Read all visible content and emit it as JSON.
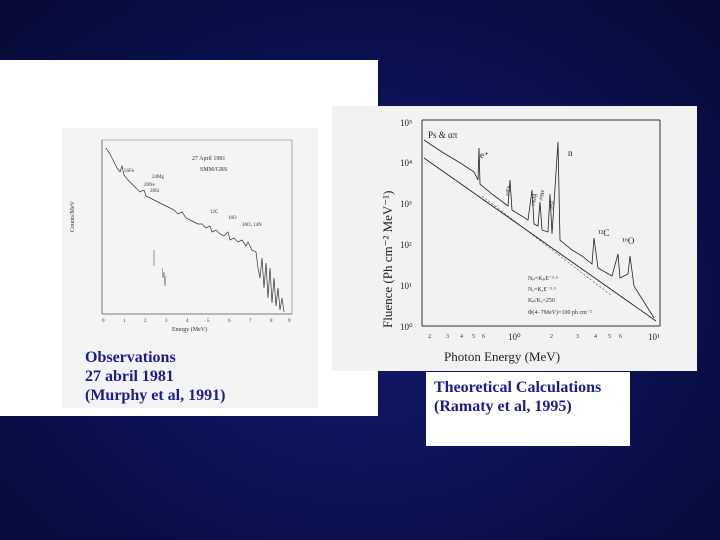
{
  "left": {
    "caption_lines": [
      "Observations",
      "27 abril 1981",
      "(Murphy et al, 1991)"
    ],
    "figure": {
      "date_label": "27 April 1981",
      "instrument_label": "SMM/GRS",
      "y_axis_label": "Counts/MeV",
      "x_axis_label": "Energy (MeV)",
      "x_ticks": [
        "0",
        "1",
        "2",
        "3",
        "4",
        "5",
        "6",
        "7",
        "8",
        "9"
      ],
      "line_labels": [
        "56Fe",
        "24Mg",
        "20Ne",
        "28Si",
        "12C",
        "16O",
        "16O, 14N"
      ]
    }
  },
  "right": {
    "caption_lines": [
      "Theoretical Calculations",
      "(Ramaty et al, 1995)"
    ],
    "figure": {
      "y_axis_label": "Fluence (Ph cm⁻² MeV⁻¹)",
      "x_axis_label": "Photon Energy (MeV)",
      "y_ticks": [
        "10⁵",
        "10⁴",
        "10³",
        "10²",
        "10¹",
        "10⁰"
      ],
      "x_ticks": [
        "2",
        "3",
        "4",
        "5",
        "6",
        "10⁰",
        "2",
        "3",
        "4",
        "5",
        "6",
        "10¹"
      ],
      "annotations": [
        "Ps & απ",
        "e⁺",
        "n",
        "⁵⁶Fe",
        "²⁴Mg",
        "²⁰Ne",
        "²⁸Si",
        "¹²C",
        "¹⁶O"
      ],
      "params": [
        "Nₚ=KₚE⁻³·⁵",
        "Nₐ=KₐE⁻³·⁵",
        "Kₚ/Kₐ=250",
        "Φ(4−7MeV)=100 ph cm⁻²"
      ]
    }
  }
}
